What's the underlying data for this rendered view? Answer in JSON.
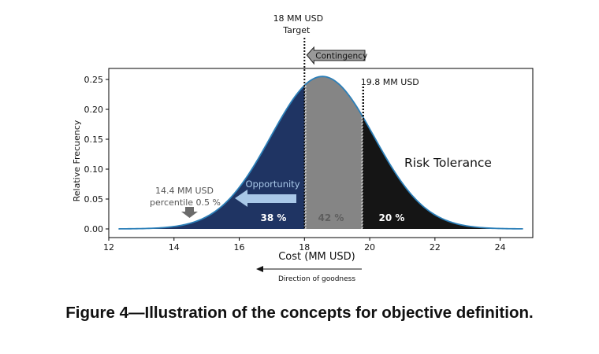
{
  "chart_data": {
    "type": "area",
    "title": "",
    "xlabel": "Cost (MM USD)",
    "ylabel": "Relative Frecuency",
    "xlim": [
      12,
      25
    ],
    "ylim": [
      0,
      0.27
    ],
    "xticks": [
      12,
      14,
      16,
      18,
      20,
      22,
      24
    ],
    "yticks": [
      0.0,
      0.05,
      0.1,
      0.15,
      0.2,
      0.25
    ],
    "distribution": {
      "mean": 18.55,
      "sd": 1.58,
      "peak": 0.255,
      "x_start": 12.3,
      "x_end": 24.7
    },
    "regions": [
      {
        "name": "opportunity",
        "from": 12.3,
        "to": 18.0,
        "color": "#1f3463",
        "label": "38 %"
      },
      {
        "name": "contingency",
        "from": 18.0,
        "to": 19.8,
        "color": "#858585",
        "label": "42 %"
      },
      {
        "name": "risk",
        "from": 19.8,
        "to": 24.7,
        "color": "#151515",
        "label": "20 %"
      }
    ],
    "curve_color": "#2c7fb8",
    "markers": {
      "target_x": 18.0,
      "target_value": "18 MM USD",
      "target_label": "Target",
      "upper_x": 19.8,
      "upper_value": "19.8 MM USD",
      "low_x": 14.4,
      "low_value": "14.4 MM USD",
      "low_label": "percentile 0.5 %"
    },
    "annotations": {
      "contingency": "Contingency",
      "opportunity": "Opportunity",
      "risk_tolerance": "Risk Tolerance",
      "direction": "Direction of goodness"
    },
    "colors": {
      "opportunity_arrow": "#a9c8e8",
      "contingency_arrow": "#999999",
      "low_arrow": "#6b6b6b"
    }
  },
  "caption": "Figure 4—Illustration of the concepts for objective definition."
}
